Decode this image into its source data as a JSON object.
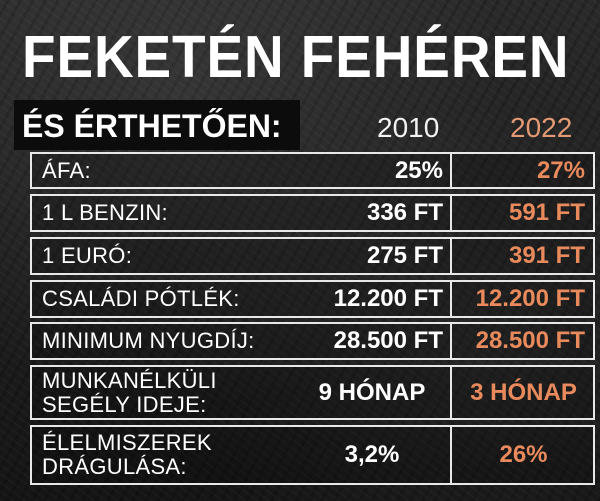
{
  "title": "FEKETÉN FEHÉREN",
  "subtitle": "ÉS ÉRTHETŐEN:",
  "years": [
    "2010",
    "2022"
  ],
  "colors": {
    "year_2010": "#f2f2f2",
    "year_2022": "#e39a74",
    "value_2022": "#e88a5c",
    "border": "#e8e8e8"
  },
  "rows": [
    {
      "label": "ÁFA:",
      "v2010": "25%",
      "v2022": "27%"
    },
    {
      "label": "1 L BENZIN:",
      "v2010": "336 FT",
      "v2022": "591 FT"
    },
    {
      "label": "1 EURÓ:",
      "v2010": "275 FT",
      "v2022": "391 FT"
    },
    {
      "label": "CSALÁDI PÓTLÉK:",
      "v2010": "12.200 FT",
      "v2022": "12.200 FT"
    },
    {
      "label": "MINIMUM NYUGDÍJ:",
      "v2010": "28.500 FT",
      "v2022": "28.500 FT"
    },
    {
      "label_line1": "MUNKANÉLKÜLI",
      "label_line2": "SEGÉLY IDEJE:",
      "v2010": "9 HÓNAP",
      "v2022": "3 HÓNAP"
    },
    {
      "label_line1": "ÉLELMISZEREK",
      "label_line2": "DRÁGULÁSA:",
      "v2010": "3,2%",
      "v2022": "26%"
    }
  ]
}
